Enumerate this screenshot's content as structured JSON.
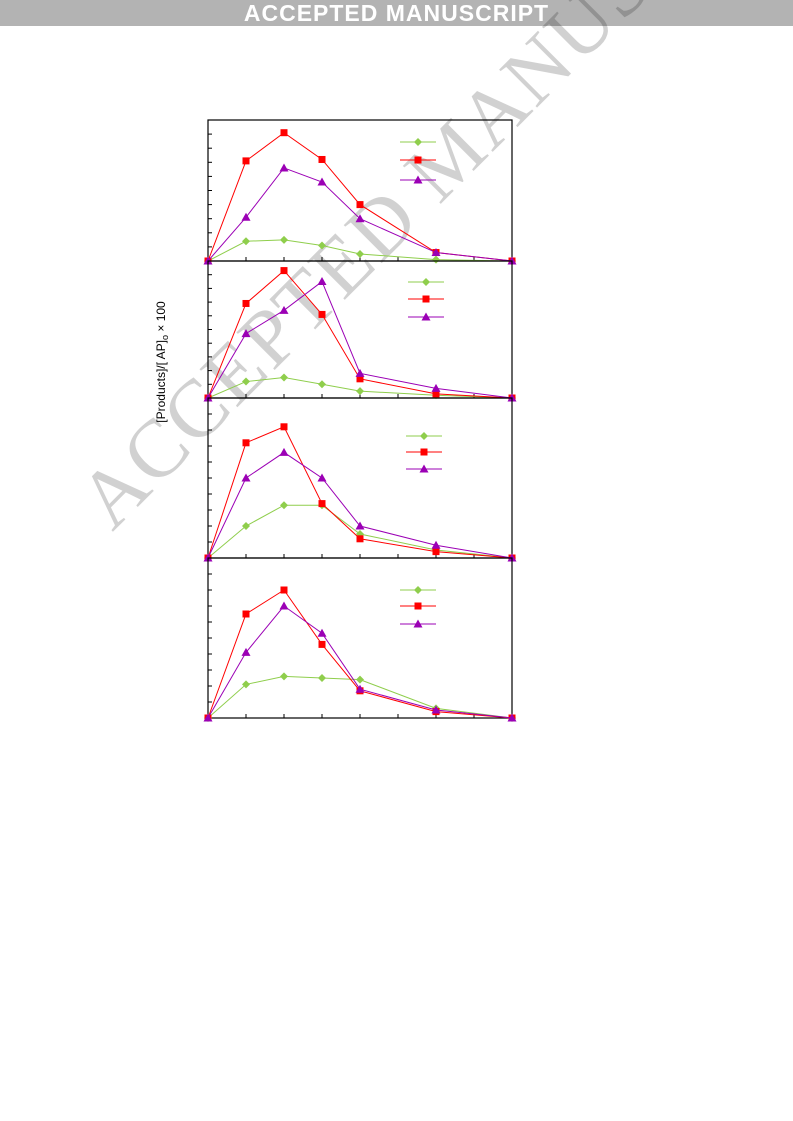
{
  "banner": {
    "text": "ACCEPTED MANUSCRIPT"
  },
  "watermark": {
    "text": "ACCEPTED MANUSCRIPT"
  },
  "y_axis_label": {
    "main": "[Products]/[ AP]",
    "sub": "o",
    "suffix": " × 100"
  },
  "colors": {
    "green": "#8fce4c",
    "red": "#ff0000",
    "purple": "#9b00b5"
  },
  "chart_data": [
    {
      "type": "line",
      "x": [
        0,
        1,
        2,
        3,
        4,
        6,
        8
      ],
      "ylim": [
        0,
        1
      ],
      "series": [
        {
          "marker": "diamond",
          "color": "#8fce4c",
          "values": [
            0,
            0.14,
            0.15,
            0.11,
            0.05,
            0.01,
            0
          ]
        },
        {
          "marker": "square",
          "color": "#ff0000",
          "values": [
            0,
            0.71,
            0.91,
            0.72,
            0.4,
            0.06,
            0
          ]
        },
        {
          "marker": "triangle",
          "color": "#9b00b5",
          "values": [
            0,
            0.31,
            0.66,
            0.56,
            0.3,
            0.06,
            0
          ]
        }
      ]
    },
    {
      "type": "line",
      "x": [
        0,
        1,
        2,
        3,
        4,
        6,
        8
      ],
      "ylim": [
        0,
        1
      ],
      "series": [
        {
          "marker": "diamond",
          "color": "#8fce4c",
          "values": [
            0,
            0.12,
            0.15,
            0.1,
            0.05,
            0.02,
            0
          ]
        },
        {
          "marker": "square",
          "color": "#ff0000",
          "values": [
            0,
            0.69,
            0.93,
            0.61,
            0.14,
            0.03,
            0
          ]
        },
        {
          "marker": "triangle",
          "color": "#9b00b5",
          "values": [
            0,
            0.47,
            0.64,
            0.85,
            0.18,
            0.07,
            0
          ]
        }
      ]
    },
    {
      "type": "line",
      "x": [
        0,
        1,
        2,
        3,
        4,
        6,
        8
      ],
      "ylim": [
        0,
        1
      ],
      "series": [
        {
          "marker": "diamond",
          "color": "#8fce4c",
          "values": [
            0,
            0.2,
            0.33,
            0.33,
            0.15,
            0.05,
            0
          ]
        },
        {
          "marker": "square",
          "color": "#ff0000",
          "values": [
            0,
            0.72,
            0.82,
            0.34,
            0.12,
            0.04,
            0
          ]
        },
        {
          "marker": "triangle",
          "color": "#9b00b5",
          "values": [
            0,
            0.5,
            0.66,
            0.5,
            0.2,
            0.08,
            0
          ]
        }
      ]
    },
    {
      "type": "line",
      "x": [
        0,
        1,
        2,
        3,
        4,
        6,
        8
      ],
      "ylim": [
        0,
        1
      ],
      "series": [
        {
          "marker": "diamond",
          "color": "#8fce4c",
          "values": [
            0,
            0.21,
            0.26,
            0.25,
            0.24,
            0.06,
            0
          ]
        },
        {
          "marker": "square",
          "color": "#ff0000",
          "values": [
            0,
            0.65,
            0.8,
            0.46,
            0.17,
            0.04,
            0
          ]
        },
        {
          "marker": "triangle",
          "color": "#9b00b5",
          "values": [
            0,
            0.41,
            0.7,
            0.53,
            0.18,
            0.05,
            0
          ]
        }
      ]
    }
  ]
}
